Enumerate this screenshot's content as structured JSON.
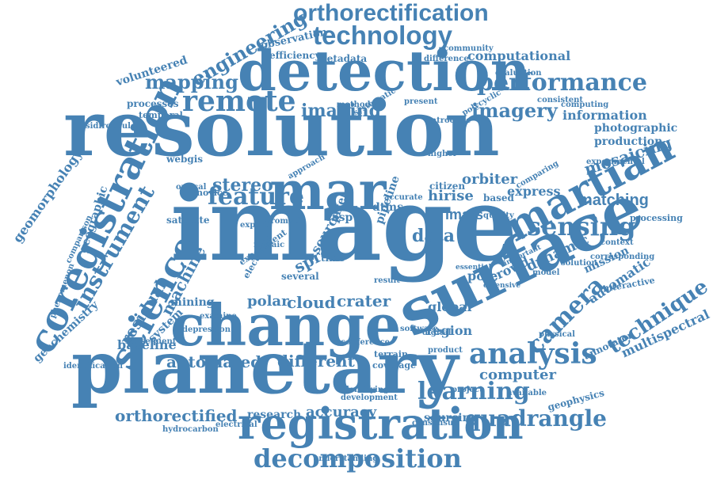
{
  "word_cloud": {
    "color": "#4682b4",
    "words": [
      "image",
      "resolution",
      "planetary",
      "surface",
      "change",
      "detection",
      "registration",
      "mar",
      "coregistration",
      "science",
      "martian",
      "technology",
      "orthorectification",
      "sensing",
      "remote",
      "feature",
      "analysis",
      "camera",
      "technique",
      "decomposition",
      "quadrangle",
      "performance",
      "instrument",
      "mapping",
      "engineering",
      "stereo",
      "learning",
      "matching",
      "imagery",
      "imaging",
      "data",
      "crater",
      "cloud",
      "polar",
      "automated",
      "different",
      "computer",
      "orthorectified",
      "accuracy",
      "research",
      "global",
      "region",
      "mosaicing",
      "dynamic",
      "crowd",
      "pole",
      "orbiter",
      "hirise",
      "imars",
      "express",
      "machine",
      "mining",
      "baseline",
      "system",
      "residual",
      "geochemistry",
      "geographic",
      "geomorphology",
      "information",
      "photographic",
      "production",
      "computational",
      "automatic",
      "multispectral",
      "mission",
      "processing",
      "interactive",
      "annotator",
      "geophysics",
      "sourcing",
      "terrain",
      "coverage",
      "volunteered",
      "processes",
      "temporal",
      "metadata",
      "efficiency",
      "observation",
      "satellite",
      "webgis",
      "novice",
      "optical",
      "computing",
      "context",
      "evaluation",
      "consistent",
      "difference",
      "community",
      "present",
      "method",
      "introduce",
      "citizen",
      "based",
      "solution",
      "model",
      "physical",
      "product",
      "project",
      "available",
      "identification",
      "hydrocarbon",
      "electrical",
      "consensus",
      "understanding",
      "identifying",
      "development",
      "conference",
      "subsequent",
      "depression",
      "examine",
      "phenomenon",
      "comparison",
      "sidiropoulos",
      "experimental",
      "comparing",
      "corresponding",
      "important",
      "extensive",
      "essential",
      "software",
      "digital",
      "result",
      "spre",
      "pipeline",
      "dtms",
      "casp",
      "source",
      "pixel",
      "time",
      "several",
      "experiment",
      "electronic",
      "aromatic",
      "mosaic",
      "expert",
      "quality",
      "higher",
      "accurate",
      "polycyclic",
      "systematic",
      "approach"
    ]
  }
}
